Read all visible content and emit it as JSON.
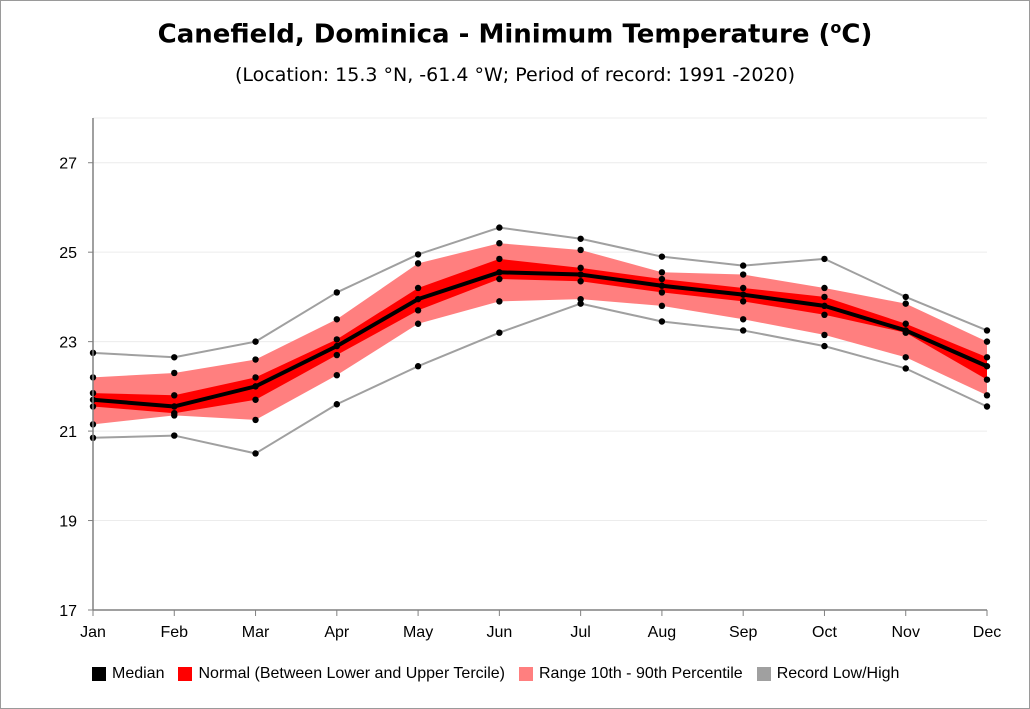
{
  "title": "Canefield, Dominica - Minimum Temperature (",
  "title_sup": "o",
  "title_end": "C)",
  "subtitle": "(Location: 15.3 °N, -61.4 °W; Period of record: 1991 -2020)",
  "colors": {
    "median": "#000000",
    "normal": "#ff0000",
    "range": "#ff7f7f",
    "record": "#a0a0a0"
  },
  "legend": [
    {
      "label": "Median",
      "color": "#000000"
    },
    {
      "label": "Normal (Between Lower and Upper Tercile)",
      "color": "#ff0000"
    },
    {
      "label": "Range 10th - 90th Percentile",
      "color": "#ff7f7f"
    },
    {
      "label": "Record Low/High",
      "color": "#a0a0a0"
    }
  ],
  "chart_data": {
    "type": "line",
    "categories": [
      "Jan",
      "Feb",
      "Mar",
      "Apr",
      "May",
      "Jun",
      "Jul",
      "Aug",
      "Sep",
      "Oct",
      "Nov",
      "Dec"
    ],
    "ylim": [
      17,
      28
    ],
    "yticks": [
      17,
      19,
      21,
      23,
      25,
      27
    ],
    "grid": true,
    "legend_position": "bottom",
    "series": [
      {
        "name": "Median",
        "values": [
          21.7,
          21.55,
          22.0,
          22.9,
          23.95,
          24.55,
          24.5,
          24.25,
          24.05,
          23.8,
          23.25,
          22.45
        ]
      },
      {
        "name": "Normal (Between Lower and Upper Tercile)",
        "lower": [
          21.55,
          21.4,
          21.7,
          22.7,
          23.7,
          24.4,
          24.35,
          24.1,
          23.9,
          23.6,
          23.2,
          22.15
        ],
        "upper": [
          21.85,
          21.8,
          22.2,
          23.05,
          24.2,
          24.85,
          24.65,
          24.4,
          24.2,
          24.0,
          23.4,
          22.65
        ]
      },
      {
        "name": "Range 10th - 90th Percentile",
        "lower": [
          21.15,
          21.35,
          21.25,
          22.25,
          23.4,
          23.9,
          23.95,
          23.8,
          23.5,
          23.15,
          22.65,
          21.8
        ],
        "upper": [
          22.2,
          22.3,
          22.6,
          23.5,
          24.75,
          25.2,
          25.05,
          24.55,
          24.5,
          24.2,
          23.85,
          23.0
        ]
      },
      {
        "name": "Record Low/High",
        "lower": [
          20.85,
          20.9,
          20.5,
          21.6,
          22.45,
          23.2,
          23.85,
          23.45,
          23.25,
          22.9,
          22.4,
          21.55
        ],
        "upper": [
          22.75,
          22.65,
          23.0,
          24.1,
          24.95,
          25.55,
          25.3,
          24.9,
          24.7,
          24.85,
          24.0,
          23.25
        ]
      }
    ]
  }
}
